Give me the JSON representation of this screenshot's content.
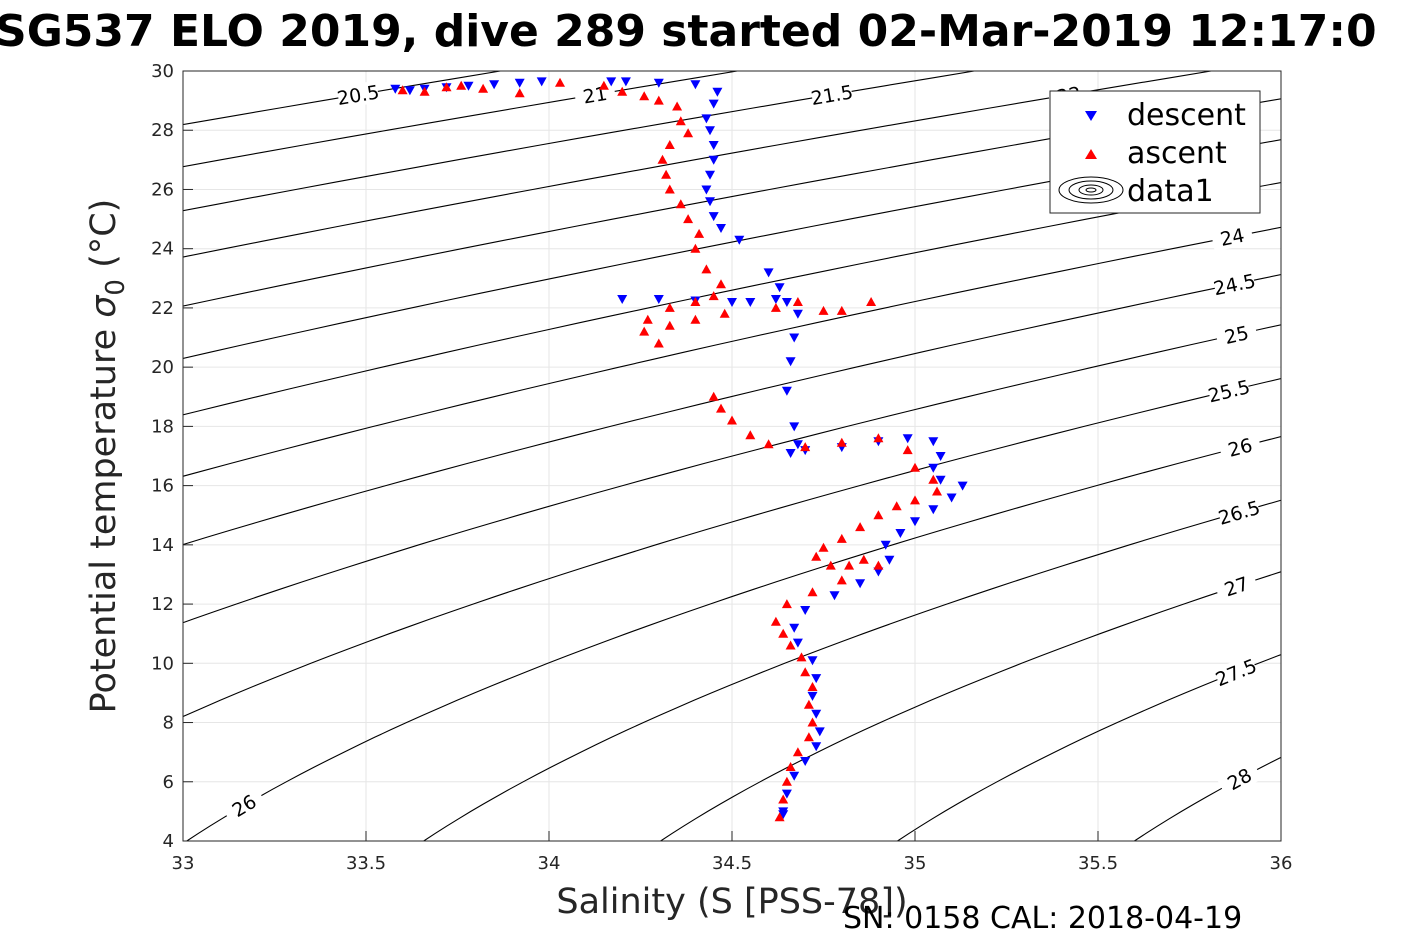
{
  "chart_data": {
    "type": "scatter",
    "title": "SG537 ELO 2019, dive 289 started 02-Mar-2019 12:17:0",
    "xlabel": "Salinity (S [PSS-78])",
    "ylabel_main": "Potential temperature ",
    "ylabel_greek": "σ",
    "ylabel_sub": "0",
    "ylabel_units": " (°C)",
    "footer": "SN: 0158  CAL: 2018-04-19",
    "xlim": [
      33,
      36
    ],
    "ylim": [
      4,
      30
    ],
    "x_ticks": [
      "33",
      "33.5",
      "34",
      "34.5",
      "35",
      "35.5",
      "36"
    ],
    "y_ticks": [
      "4",
      "6",
      "8",
      "10",
      "12",
      "14",
      "16",
      "18",
      "20",
      "22",
      "24",
      "26",
      "28",
      "30"
    ],
    "grid": true,
    "legend_position": "top-right",
    "legend": [
      {
        "label": "descent",
        "marker": "triangle-down",
        "color": "#0000ff"
      },
      {
        "label": "ascent",
        "marker": "triangle-up",
        "color": "#ff0000"
      },
      {
        "label": "data1",
        "marker": "contour-ellipses",
        "color": "#000000"
      }
    ],
    "density_contours": {
      "levels": [
        "20.5",
        "21",
        "21.5",
        "22",
        "22.5",
        "23",
        "23.5",
        "24",
        "24.5",
        "25",
        "25.5",
        "26",
        "26.5",
        "27",
        "27.5",
        "28"
      ],
      "color": "#000000"
    },
    "series": [
      {
        "name": "descent",
        "color": "#0000ff",
        "marker": "triangle-down",
        "points": [
          [
            33.58,
            29.4
          ],
          [
            33.62,
            29.35
          ],
          [
            33.66,
            29.4
          ],
          [
            33.72,
            29.45
          ],
          [
            33.78,
            29.5
          ],
          [
            33.85,
            29.55
          ],
          [
            33.92,
            29.6
          ],
          [
            33.98,
            29.65
          ],
          [
            34.17,
            29.65
          ],
          [
            34.21,
            29.65
          ],
          [
            34.3,
            29.6
          ],
          [
            34.4,
            29.55
          ],
          [
            34.46,
            29.3
          ],
          [
            34.45,
            28.9
          ],
          [
            34.43,
            28.4
          ],
          [
            34.44,
            28.0
          ],
          [
            34.45,
            27.5
          ],
          [
            34.45,
            27.0
          ],
          [
            34.44,
            26.5
          ],
          [
            34.43,
            26.0
          ],
          [
            34.44,
            25.6
          ],
          [
            34.45,
            25.1
          ],
          [
            34.47,
            24.7
          ],
          [
            34.52,
            24.3
          ],
          [
            34.6,
            23.2
          ],
          [
            34.63,
            22.7
          ],
          [
            34.65,
            22.2
          ],
          [
            34.62,
            22.3
          ],
          [
            34.55,
            22.2
          ],
          [
            34.5,
            22.2
          ],
          [
            34.4,
            22.25
          ],
          [
            34.3,
            22.3
          ],
          [
            34.2,
            22.3
          ],
          [
            34.68,
            21.8
          ],
          [
            34.67,
            21.0
          ],
          [
            34.66,
            20.2
          ],
          [
            34.65,
            19.2
          ],
          [
            34.67,
            18.0
          ],
          [
            34.68,
            17.4
          ],
          [
            34.66,
            17.1
          ],
          [
            34.7,
            17.2
          ],
          [
            34.8,
            17.3
          ],
          [
            34.9,
            17.5
          ],
          [
            34.98,
            17.6
          ],
          [
            35.05,
            17.5
          ],
          [
            35.07,
            17.0
          ],
          [
            35.05,
            16.6
          ],
          [
            35.07,
            16.2
          ],
          [
            35.13,
            16.0
          ],
          [
            35.1,
            15.6
          ],
          [
            35.05,
            15.2
          ],
          [
            35.0,
            14.8
          ],
          [
            34.96,
            14.4
          ],
          [
            34.92,
            14.0
          ],
          [
            34.93,
            13.5
          ],
          [
            34.9,
            13.1
          ],
          [
            34.85,
            12.7
          ],
          [
            34.78,
            12.3
          ],
          [
            34.7,
            11.8
          ],
          [
            34.67,
            11.2
          ],
          [
            34.68,
            10.7
          ],
          [
            34.72,
            10.1
          ],
          [
            34.73,
            9.5
          ],
          [
            34.72,
            8.9
          ],
          [
            34.73,
            8.3
          ],
          [
            34.74,
            7.7
          ],
          [
            34.73,
            7.2
          ],
          [
            34.7,
            6.7
          ],
          [
            34.67,
            6.2
          ],
          [
            34.65,
            5.6
          ],
          [
            34.64,
            5.0
          ],
          [
            34.64,
            4.9
          ]
        ]
      },
      {
        "name": "ascent",
        "color": "#ff0000",
        "marker": "triangle-up",
        "points": [
          [
            33.6,
            29.35
          ],
          [
            33.66,
            29.3
          ],
          [
            33.72,
            29.45
          ],
          [
            33.76,
            29.5
          ],
          [
            33.82,
            29.4
          ],
          [
            33.92,
            29.25
          ],
          [
            34.03,
            29.6
          ],
          [
            34.15,
            29.5
          ],
          [
            34.2,
            29.3
          ],
          [
            34.26,
            29.15
          ],
          [
            34.3,
            29.0
          ],
          [
            34.35,
            28.8
          ],
          [
            34.36,
            28.3
          ],
          [
            34.38,
            27.9
          ],
          [
            34.33,
            27.5
          ],
          [
            34.31,
            27.0
          ],
          [
            34.32,
            26.5
          ],
          [
            34.33,
            26.0
          ],
          [
            34.36,
            25.5
          ],
          [
            34.38,
            25.0
          ],
          [
            34.41,
            24.5
          ],
          [
            34.4,
            24.0
          ],
          [
            34.43,
            23.3
          ],
          [
            34.47,
            22.8
          ],
          [
            34.45,
            22.4
          ],
          [
            34.4,
            22.2
          ],
          [
            34.33,
            22.0
          ],
          [
            34.27,
            21.6
          ],
          [
            34.26,
            21.2
          ],
          [
            34.3,
            20.8
          ],
          [
            34.33,
            21.4
          ],
          [
            34.4,
            21.6
          ],
          [
            34.48,
            21.8
          ],
          [
            34.62,
            22.0
          ],
          [
            34.68,
            22.2
          ],
          [
            34.75,
            21.9
          ],
          [
            34.8,
            21.9
          ],
          [
            34.88,
            22.2
          ],
          [
            34.45,
            19.0
          ],
          [
            34.47,
            18.6
          ],
          [
            34.5,
            18.2
          ],
          [
            34.55,
            17.7
          ],
          [
            34.6,
            17.4
          ],
          [
            34.7,
            17.3
          ],
          [
            34.8,
            17.45
          ],
          [
            34.9,
            17.6
          ],
          [
            34.98,
            17.2
          ],
          [
            35.0,
            16.6
          ],
          [
            35.05,
            16.2
          ],
          [
            35.06,
            15.8
          ],
          [
            35.0,
            15.5
          ],
          [
            34.95,
            15.3
          ],
          [
            34.9,
            15.0
          ],
          [
            34.85,
            14.6
          ],
          [
            34.8,
            14.2
          ],
          [
            34.75,
            13.9
          ],
          [
            34.73,
            13.6
          ],
          [
            34.77,
            13.3
          ],
          [
            34.82,
            13.3
          ],
          [
            34.86,
            13.5
          ],
          [
            34.9,
            13.3
          ],
          [
            34.8,
            12.8
          ],
          [
            34.72,
            12.4
          ],
          [
            34.65,
            12.0
          ],
          [
            34.62,
            11.4
          ],
          [
            34.64,
            11.0
          ],
          [
            34.66,
            10.6
          ],
          [
            34.69,
            10.2
          ],
          [
            34.7,
            9.7
          ],
          [
            34.72,
            9.2
          ],
          [
            34.71,
            8.6
          ],
          [
            34.72,
            8.0
          ],
          [
            34.71,
            7.5
          ],
          [
            34.68,
            7.0
          ],
          [
            34.66,
            6.5
          ],
          [
            34.65,
            6.0
          ],
          [
            34.64,
            5.4
          ],
          [
            34.63,
            4.8
          ]
        ]
      }
    ]
  }
}
